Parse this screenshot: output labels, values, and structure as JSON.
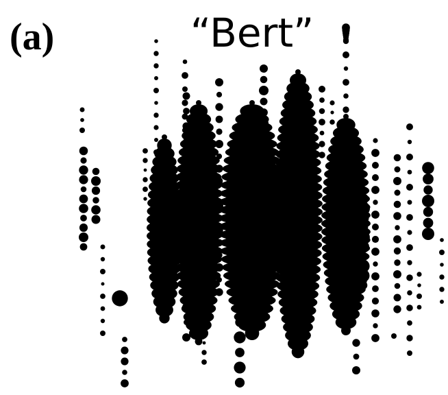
{
  "panel_label": "(a)",
  "title": "“Bert”"
}
